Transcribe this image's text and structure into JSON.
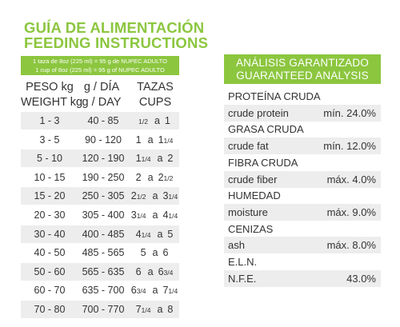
{
  "title": {
    "line1": "GUÍA DE ALIMENTACIÓN",
    "line2": "FEEDING INSTRUCTIONS"
  },
  "banner": {
    "line1": "1 taza de 8oz (225 ml) = 95 g de NUPEC ADULTO",
    "line2": "1 cup of 8oz (225 ml) = 95 g of NUPEC ADULTO"
  },
  "feeding_table": {
    "headers": {
      "weight_es": "PESO kg",
      "weight_en": "WEIGHT kg",
      "gday_es": "g / DÍA",
      "gday_en": "g / DAY",
      "cups_es": "TAZAS",
      "cups_en": "CUPS"
    },
    "rows": [
      {
        "weight": "1 - 3",
        "gday": "40 - 85",
        "cups_whole": "",
        "cups_frac": "1/2",
        "cups_sep": "a",
        "cups_to_whole": "1",
        "cups_to_frac": ""
      },
      {
        "weight": "3 - 5",
        "gday": "90 - 120",
        "cups_whole": "1",
        "cups_frac": "",
        "cups_sep": "a",
        "cups_to_whole": "1",
        "cups_to_frac": "1/4"
      },
      {
        "weight": "5 - 10",
        "gday": "120 - 190",
        "cups_whole": "1",
        "cups_frac": "1/4",
        "cups_sep": "a",
        "cups_to_whole": "2",
        "cups_to_frac": ""
      },
      {
        "weight": "10 - 15",
        "gday": "190 - 250",
        "cups_whole": "2",
        "cups_frac": "",
        "cups_sep": "a",
        "cups_to_whole": "2",
        "cups_to_frac": "1/2"
      },
      {
        "weight": "15 - 20",
        "gday": "250 - 305",
        "cups_whole": "2",
        "cups_frac": "1/2",
        "cups_sep": "a",
        "cups_to_whole": "3",
        "cups_to_frac": "1/4"
      },
      {
        "weight": "20 - 30",
        "gday": "305 - 400",
        "cups_whole": "3",
        "cups_frac": "1/4",
        "cups_sep": "a",
        "cups_to_whole": "4",
        "cups_to_frac": "1/4"
      },
      {
        "weight": "30 - 40",
        "gday": "400 - 485",
        "cups_whole": "4",
        "cups_frac": "1/4",
        "cups_sep": "a",
        "cups_to_whole": "5",
        "cups_to_frac": ""
      },
      {
        "weight": "40 - 50",
        "gday": "485 - 565",
        "cups_whole": "5",
        "cups_frac": "",
        "cups_sep": "a",
        "cups_to_whole": "6",
        "cups_to_frac": ""
      },
      {
        "weight": "50 - 60",
        "gday": "565 - 635",
        "cups_whole": "6",
        "cups_frac": "",
        "cups_sep": "a",
        "cups_to_whole": "6",
        "cups_to_frac": "3/4"
      },
      {
        "weight": "60 - 70",
        "gday": "635 - 700",
        "cups_whole": "6",
        "cups_frac": "3/4",
        "cups_sep": "a",
        "cups_to_whole": "7",
        "cups_to_frac": "1/4"
      },
      {
        "weight": "70 - 80",
        "gday": "700 - 770",
        "cups_whole": "7",
        "cups_frac": "1/4",
        "cups_sep": "a",
        "cups_to_whole": "8",
        "cups_to_frac": ""
      }
    ]
  },
  "analysis": {
    "header_es": "ANÁLISIS GARANTIZADO",
    "header_en": "GUARANTEED ANALYSIS",
    "rows": [
      {
        "label": "PROTEÍNA CRUDA",
        "value": ""
      },
      {
        "label": "crude protein",
        "value": "mín. 24.0%"
      },
      {
        "label": "GRASA CRUDA",
        "value": ""
      },
      {
        "label": "crude fat",
        "value": "mín. 12.0%"
      },
      {
        "label": "FIBRA CRUDA",
        "value": ""
      },
      {
        "label": "crude fiber",
        "value": "máx. 4.0%"
      },
      {
        "label": "HUMEDAD",
        "value": ""
      },
      {
        "label": "moisture",
        "value": "máx. 9.0%"
      },
      {
        "label": "CENIZAS",
        "value": ""
      },
      {
        "label": "ash",
        "value": "máx. 8.0%"
      },
      {
        "label": "E.L.N.",
        "value": ""
      },
      {
        "label": "N.F.E.",
        "value": "43.0%"
      }
    ]
  },
  "colors": {
    "accent_green": "#8cc63f",
    "row_shade": "#ededed"
  }
}
